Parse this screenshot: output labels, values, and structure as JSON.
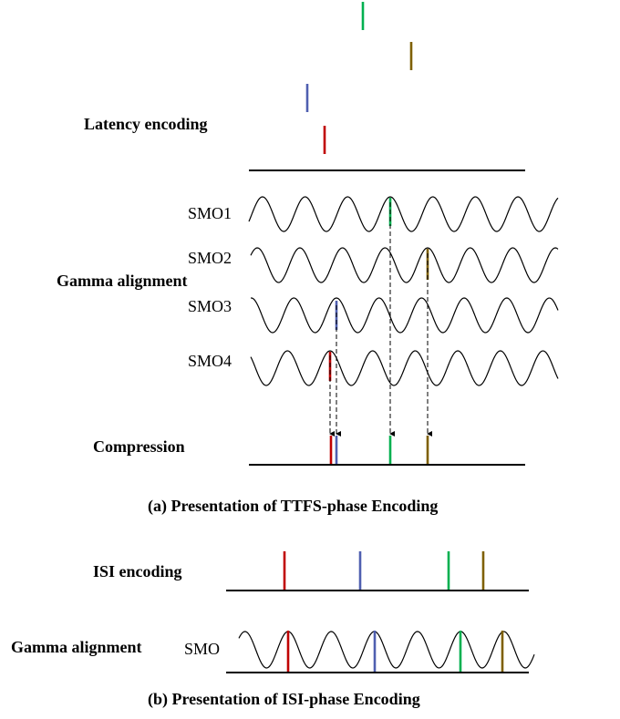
{
  "colors": {
    "red": "#c00000",
    "blue": "#4f5fb0",
    "green": "#00b050",
    "olive": "#7f6000"
  },
  "panel_a": {
    "latency_label": "Latency encoding",
    "gamma_label": "Gamma alignment",
    "compression_label": "Compression",
    "smo_labels": [
      "SMO1",
      "SMO2",
      "SMO3",
      "SMO4"
    ],
    "caption": "(a) Presentation of TTFS-phase Encoding"
  },
  "panel_b": {
    "isi_label": "ISI encoding",
    "gamma_label": "Gamma alignment",
    "smo_label": "SMO",
    "caption": "(b) Presentation of ISI-phase Encoding"
  }
}
